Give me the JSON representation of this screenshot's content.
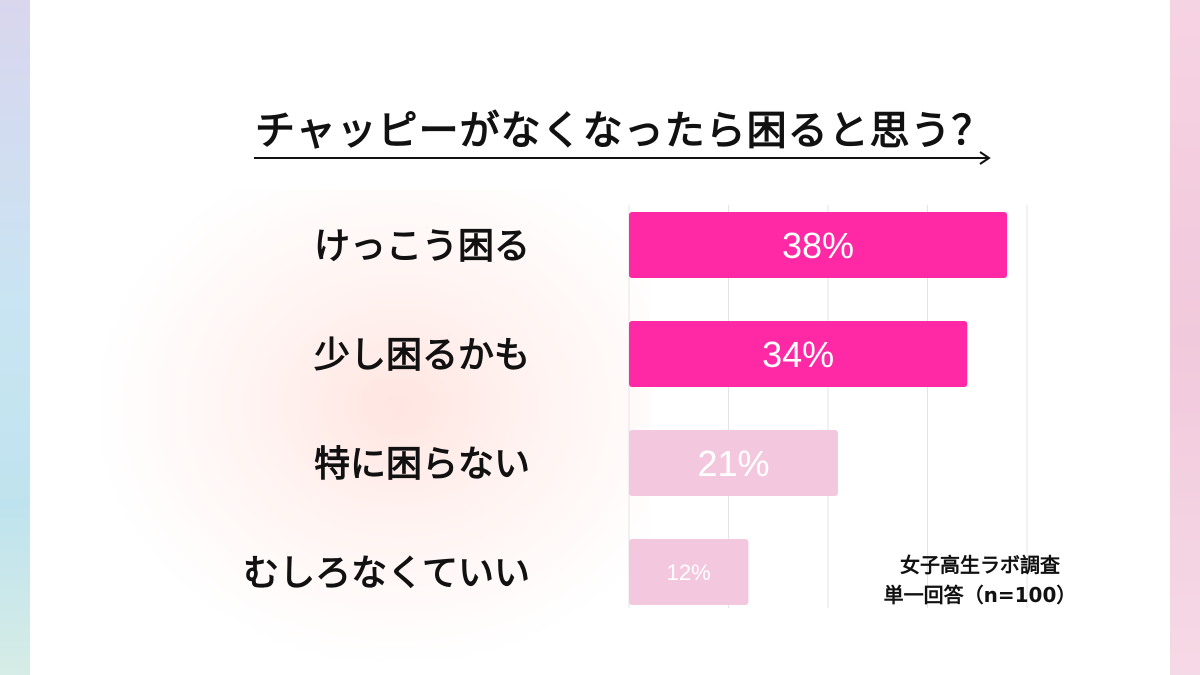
{
  "chart_data": {
    "type": "bar",
    "orientation": "horizontal",
    "title": "チャッピーがなくなったら困ると思う？",
    "categories": [
      "けっこう困る",
      "少し困るかも",
      "特に困らない",
      "むしろなくていい"
    ],
    "values": [
      38,
      34,
      21,
      12
    ],
    "value_labels": [
      "38%",
      "34%",
      "21%",
      "12%"
    ],
    "unit": "%",
    "xlim": [
      0,
      40
    ],
    "grid": true,
    "colors": [
      "#ff29a6",
      "#ff29a6",
      "#f3c8df",
      "#f3c8df"
    ]
  },
  "source": {
    "line1": "女子高生ラボ調査",
    "line2": "単一回答（n=100）"
  }
}
